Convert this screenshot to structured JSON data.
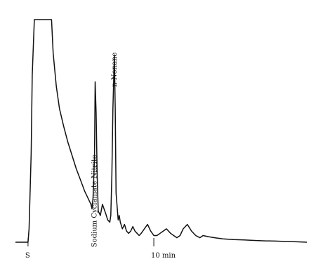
{
  "chart_data": {
    "type": "line",
    "title": "",
    "xlabel": "",
    "ylabel": "",
    "grid": false,
    "legend": "none",
    "x_unit": "min",
    "xlim": [
      -0.6,
      13.4
    ],
    "ylim": [
      0,
      100
    ],
    "x_ticks": [
      {
        "x": 0,
        "label": "S"
      },
      {
        "x": 6,
        "label": "10 min"
      }
    ],
    "series": [
      {
        "values_x": [
          -0.6,
          -0.1,
          0.0,
          0.05,
          0.15,
          0.2,
          0.3,
          0.4,
          1.05,
          1.12,
          1.2,
          1.35,
          1.5,
          1.7,
          1.9,
          2.1,
          2.3,
          2.5,
          2.7,
          2.9,
          3.0,
          3.05,
          3.1,
          3.17,
          3.2,
          3.25,
          3.3,
          3.35,
          3.45,
          3.55,
          3.7,
          3.8,
          3.9,
          3.95,
          4.0,
          4.05,
          4.12,
          4.16,
          4.2,
          4.3,
          4.35,
          4.4,
          4.5,
          4.6,
          4.7,
          4.8,
          4.9,
          5.0,
          5.1,
          5.2,
          5.3,
          5.4,
          5.55,
          5.7,
          5.85,
          6.0,
          6.15,
          6.3,
          6.45,
          6.6,
          6.8,
          6.95,
          7.1,
          7.25,
          7.4,
          7.6,
          7.8,
          8.0,
          8.2,
          8.35,
          8.6,
          8.9,
          9.3,
          9.8,
          10.3,
          10.8,
          11.3,
          11.8,
          12.3,
          12.8,
          13.3
        ],
        "values_y": [
          0,
          0,
          0,
          6,
          40,
          75,
          100,
          100,
          100,
          100,
          85,
          70,
          60,
          52,
          45,
          39,
          33,
          28,
          23,
          19,
          17,
          15,
          20,
          38,
          72,
          58,
          30,
          14,
          12,
          17,
          13,
          10,
          9,
          12,
          30,
          60,
          84,
          60,
          22,
          10,
          12,
          9,
          6,
          8,
          5,
          4,
          5,
          7,
          5,
          4,
          3,
          4,
          6,
          8,
          5,
          3,
          3,
          4,
          5,
          6,
          4,
          3,
          2,
          3,
          6,
          8,
          5,
          3,
          2,
          3,
          2.5,
          2,
          1.5,
          1.2,
          1,
          0.8,
          0.6,
          0.5,
          0.3,
          0.2,
          0
        ]
      }
    ],
    "annotations": [
      {
        "text": "Sodium Cyclamate Nitrite",
        "x": 3.17
      },
      {
        "text": "n-Nonane",
        "x": 4.12
      }
    ]
  }
}
